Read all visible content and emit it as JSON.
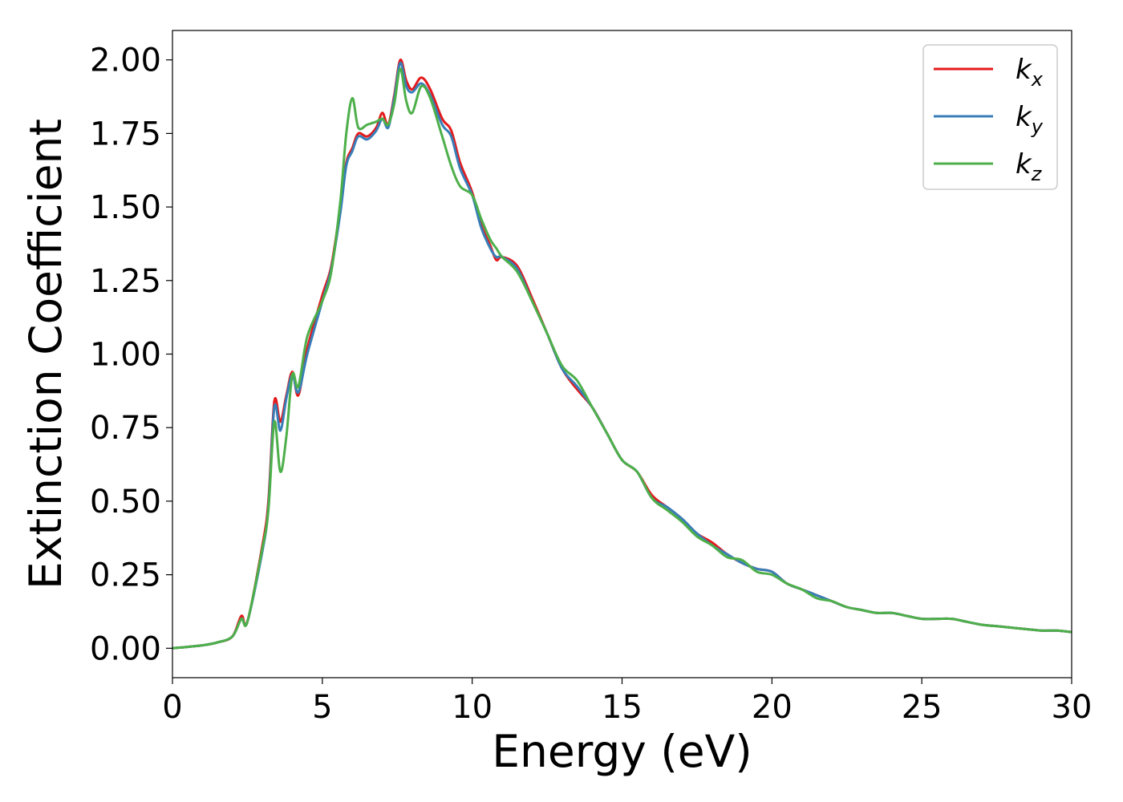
{
  "chart_data": {
    "type": "line",
    "title": "",
    "xlabel": "Energy (eV)",
    "ylabel": "Extinction Coefficient",
    "xlim": [
      0,
      30
    ],
    "ylim": [
      -0.1,
      2.1
    ],
    "xticks": [
      0,
      5,
      10,
      15,
      20,
      25,
      30
    ],
    "xtick_labels": [
      "0",
      "5",
      "10",
      "15",
      "20",
      "25",
      "30"
    ],
    "yticks": [
      0,
      0.25,
      0.5,
      0.75,
      1.0,
      1.25,
      1.5,
      1.75,
      2.0
    ],
    "ytick_labels": [
      "0.00",
      "0.25",
      "0.50",
      "0.75",
      "1.00",
      "1.25",
      "1.50",
      "1.75",
      "2.00"
    ],
    "grid": false,
    "legend_position": "top-right",
    "series": [
      {
        "name": "k_x",
        "label_main": "k",
        "label_sub": "x",
        "color": "#e41a1c",
        "points": [
          [
            0,
            0
          ],
          [
            1,
            0.01
          ],
          [
            1.5,
            0.02
          ],
          [
            2,
            0.04
          ],
          [
            2.3,
            0.11
          ],
          [
            2.5,
            0.09
          ],
          [
            3,
            0.35
          ],
          [
            3.2,
            0.5
          ],
          [
            3.4,
            0.84
          ],
          [
            3.6,
            0.77
          ],
          [
            3.8,
            0.86
          ],
          [
            4,
            0.94
          ],
          [
            4.2,
            0.86
          ],
          [
            4.5,
            1.02
          ],
          [
            5,
            1.2
          ],
          [
            5.3,
            1.3
          ],
          [
            5.6,
            1.5
          ],
          [
            5.8,
            1.65
          ],
          [
            6,
            1.7
          ],
          [
            6.2,
            1.75
          ],
          [
            6.5,
            1.74
          ],
          [
            6.8,
            1.77
          ],
          [
            7,
            1.82
          ],
          [
            7.2,
            1.78
          ],
          [
            7.4,
            1.88
          ],
          [
            7.6,
            2.0
          ],
          [
            7.8,
            1.93
          ],
          [
            8,
            1.9
          ],
          [
            8.3,
            1.94
          ],
          [
            8.6,
            1.9
          ],
          [
            9,
            1.8
          ],
          [
            9.3,
            1.76
          ],
          [
            9.6,
            1.65
          ],
          [
            10,
            1.55
          ],
          [
            10.3,
            1.44
          ],
          [
            10.6,
            1.37
          ],
          [
            10.8,
            1.32
          ],
          [
            11,
            1.33
          ],
          [
            11.5,
            1.3
          ],
          [
            12,
            1.19
          ],
          [
            12.5,
            1.07
          ],
          [
            13,
            0.95
          ],
          [
            13.5,
            0.88
          ],
          [
            14,
            0.82
          ],
          [
            14.5,
            0.73
          ],
          [
            15,
            0.64
          ],
          [
            15.5,
            0.6
          ],
          [
            16,
            0.52
          ],
          [
            16.5,
            0.48
          ],
          [
            17,
            0.44
          ],
          [
            17.5,
            0.39
          ],
          [
            18,
            0.36
          ],
          [
            18.5,
            0.32
          ],
          [
            19,
            0.29
          ],
          [
            19.5,
            0.27
          ],
          [
            20,
            0.26
          ],
          [
            20.5,
            0.22
          ],
          [
            21,
            0.2
          ],
          [
            21.5,
            0.18
          ],
          [
            22,
            0.16
          ],
          [
            22.5,
            0.14
          ],
          [
            23,
            0.13
          ],
          [
            23.5,
            0.12
          ],
          [
            24,
            0.12
          ],
          [
            24.5,
            0.11
          ],
          [
            25,
            0.1
          ],
          [
            25.5,
            0.1
          ],
          [
            26,
            0.1
          ],
          [
            26.5,
            0.09
          ],
          [
            27,
            0.08
          ],
          [
            27.5,
            0.075
          ],
          [
            28,
            0.07
          ],
          [
            28.5,
            0.065
          ],
          [
            29,
            0.06
          ],
          [
            29.5,
            0.06
          ],
          [
            30,
            0.055
          ]
        ]
      },
      {
        "name": "k_y",
        "label_main": "k",
        "label_sub": "y",
        "color": "#377eb8",
        "points": [
          [
            0,
            0
          ],
          [
            1,
            0.01
          ],
          [
            1.5,
            0.02
          ],
          [
            2,
            0.04
          ],
          [
            2.3,
            0.1
          ],
          [
            2.5,
            0.09
          ],
          [
            3,
            0.33
          ],
          [
            3.2,
            0.48
          ],
          [
            3.4,
            0.82
          ],
          [
            3.6,
            0.74
          ],
          [
            3.8,
            0.85
          ],
          [
            4,
            0.93
          ],
          [
            4.2,
            0.87
          ],
          [
            4.5,
            1.0
          ],
          [
            5,
            1.18
          ],
          [
            5.3,
            1.29
          ],
          [
            5.6,
            1.48
          ],
          [
            5.8,
            1.64
          ],
          [
            6,
            1.69
          ],
          [
            6.2,
            1.74
          ],
          [
            6.5,
            1.73
          ],
          [
            6.8,
            1.76
          ],
          [
            7,
            1.8
          ],
          [
            7.2,
            1.77
          ],
          [
            7.4,
            1.87
          ],
          [
            7.6,
            1.99
          ],
          [
            7.8,
            1.91
          ],
          [
            8,
            1.89
          ],
          [
            8.3,
            1.92
          ],
          [
            8.6,
            1.88
          ],
          [
            9,
            1.78
          ],
          [
            9.3,
            1.74
          ],
          [
            9.6,
            1.63
          ],
          [
            10,
            1.54
          ],
          [
            10.3,
            1.43
          ],
          [
            10.6,
            1.36
          ],
          [
            10.8,
            1.33
          ],
          [
            11,
            1.33
          ],
          [
            11.5,
            1.29
          ],
          [
            12,
            1.18
          ],
          [
            12.5,
            1.07
          ],
          [
            13,
            0.95
          ],
          [
            13.5,
            0.89
          ],
          [
            14,
            0.82
          ],
          [
            14.5,
            0.73
          ],
          [
            15,
            0.64
          ],
          [
            15.5,
            0.6
          ],
          [
            16,
            0.51
          ],
          [
            16.5,
            0.48
          ],
          [
            17,
            0.44
          ],
          [
            17.5,
            0.39
          ],
          [
            18,
            0.35
          ],
          [
            18.5,
            0.32
          ],
          [
            19,
            0.29
          ],
          [
            19.5,
            0.27
          ],
          [
            20,
            0.26
          ],
          [
            20.5,
            0.22
          ],
          [
            21,
            0.2
          ],
          [
            21.5,
            0.18
          ],
          [
            22,
            0.16
          ],
          [
            22.5,
            0.14
          ],
          [
            23,
            0.13
          ],
          [
            23.5,
            0.12
          ],
          [
            24,
            0.12
          ],
          [
            24.5,
            0.11
          ],
          [
            25,
            0.1
          ],
          [
            25.5,
            0.1
          ],
          [
            26,
            0.1
          ],
          [
            26.5,
            0.09
          ],
          [
            27,
            0.08
          ],
          [
            27.5,
            0.075
          ],
          [
            28,
            0.07
          ],
          [
            28.5,
            0.065
          ],
          [
            29,
            0.06
          ],
          [
            29.5,
            0.06
          ],
          [
            30,
            0.055
          ]
        ]
      },
      {
        "name": "k_z",
        "label_main": "k",
        "label_sub": "z",
        "color": "#4daf4a",
        "points": [
          [
            0,
            0
          ],
          [
            1,
            0.01
          ],
          [
            1.5,
            0.02
          ],
          [
            2,
            0.04
          ],
          [
            2.3,
            0.1
          ],
          [
            2.5,
            0.09
          ],
          [
            3,
            0.34
          ],
          [
            3.2,
            0.47
          ],
          [
            3.4,
            0.77
          ],
          [
            3.6,
            0.6
          ],
          [
            3.8,
            0.72
          ],
          [
            4,
            0.93
          ],
          [
            4.2,
            0.89
          ],
          [
            4.5,
            1.06
          ],
          [
            5,
            1.18
          ],
          [
            5.3,
            1.28
          ],
          [
            5.6,
            1.52
          ],
          [
            5.8,
            1.75
          ],
          [
            6,
            1.87
          ],
          [
            6.2,
            1.77
          ],
          [
            6.5,
            1.78
          ],
          [
            6.8,
            1.79
          ],
          [
            7,
            1.8
          ],
          [
            7.2,
            1.78
          ],
          [
            7.4,
            1.85
          ],
          [
            7.6,
            1.97
          ],
          [
            7.8,
            1.86
          ],
          [
            8,
            1.82
          ],
          [
            8.3,
            1.91
          ],
          [
            8.6,
            1.87
          ],
          [
            9,
            1.74
          ],
          [
            9.3,
            1.64
          ],
          [
            9.6,
            1.57
          ],
          [
            10,
            1.54
          ],
          [
            10.3,
            1.46
          ],
          [
            10.6,
            1.39
          ],
          [
            10.8,
            1.36
          ],
          [
            11,
            1.33
          ],
          [
            11.5,
            1.28
          ],
          [
            12,
            1.18
          ],
          [
            12.5,
            1.07
          ],
          [
            13,
            0.96
          ],
          [
            13.5,
            0.91
          ],
          [
            14,
            0.82
          ],
          [
            14.5,
            0.73
          ],
          [
            15,
            0.64
          ],
          [
            15.5,
            0.6
          ],
          [
            16,
            0.51
          ],
          [
            16.5,
            0.47
          ],
          [
            17,
            0.43
          ],
          [
            17.5,
            0.38
          ],
          [
            18,
            0.35
          ],
          [
            18.5,
            0.31
          ],
          [
            19,
            0.3
          ],
          [
            19.5,
            0.26
          ],
          [
            20,
            0.25
          ],
          [
            20.5,
            0.22
          ],
          [
            21,
            0.2
          ],
          [
            21.5,
            0.17
          ],
          [
            22,
            0.16
          ],
          [
            22.5,
            0.14
          ],
          [
            23,
            0.13
          ],
          [
            23.5,
            0.12
          ],
          [
            24,
            0.12
          ],
          [
            24.5,
            0.11
          ],
          [
            25,
            0.1
          ],
          [
            25.5,
            0.1
          ],
          [
            26,
            0.1
          ],
          [
            26.5,
            0.09
          ],
          [
            27,
            0.08
          ],
          [
            27.5,
            0.075
          ],
          [
            28,
            0.07
          ],
          [
            28.5,
            0.065
          ],
          [
            29,
            0.06
          ],
          [
            29.5,
            0.06
          ],
          [
            30,
            0.055
          ]
        ]
      }
    ]
  }
}
